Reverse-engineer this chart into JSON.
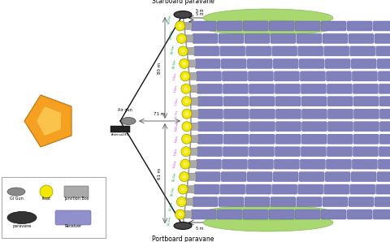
{
  "bg_color": "#ffffff",
  "starboard_label": "Starboard paravane",
  "portboard_label": "Portboard paravane",
  "air_gun_label": "Air gun",
  "antenna_label": "AntennaGPS",
  "dist_71m": "71 m",
  "dist_80m": "80 m",
  "dist_61m": "61 m",
  "n_streamers": 16,
  "streamer_color": "#8080bb",
  "streamer_seg_color_edge": "#6060aa",
  "float_color": "#f5e800",
  "float_edge": "#999900",
  "junction_color": "#aaaaaa",
  "paravane_color": "#444444",
  "green_float_color": "#aad870",
  "green_float_edge": "#88bb55",
  "cable_color": "#999999",
  "tow_line_color": "#111111",
  "dim_line_color": "#555555",
  "dashed_green": "#00aa44",
  "pink_label_color": "#cc44cc",
  "ship_face": "#f5a020",
  "ship_highlight": "#ffe070",
  "gun_color": "#888888",
  "legend_items": [
    "GI Gun",
    "float",
    "Junction Box",
    "paravane",
    "Receiver"
  ],
  "green_seg_labels": [
    "14.8m",
    "14.8m",
    "14.4m",
    "14.4m",
    "14.0m",
    "14.0m",
    "13.6m",
    "13.2m"
  ],
  "pink_seg_labels": [
    "5.5m",
    "5.6m",
    "5.5m",
    "5.7m",
    "9.65m",
    "9.6m",
    "9.4m",
    "9.2m"
  ]
}
